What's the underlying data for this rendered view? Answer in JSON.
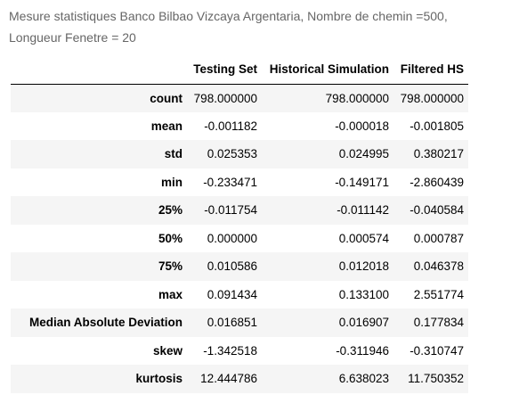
{
  "caption": {
    "line1": "Mesure statistiques Banco Bilbao Vizcaya Argentaria, Nombre de chemin =500,",
    "line2": "Longueur Fenetre = 20"
  },
  "table": {
    "index_header": "",
    "columns": [
      "Testing Set",
      "Historical Simulation",
      "Filtered HS"
    ],
    "rows": [
      {
        "label": "count",
        "values": [
          "798.000000",
          "798.000000",
          "798.000000"
        ]
      },
      {
        "label": "mean",
        "values": [
          "-0.001182",
          "-0.000018",
          "-0.001805"
        ]
      },
      {
        "label": "std",
        "values": [
          "0.025353",
          "0.024995",
          "0.380217"
        ]
      },
      {
        "label": "min",
        "values": [
          "-0.233471",
          "-0.149171",
          "-2.860439"
        ]
      },
      {
        "label": "25%",
        "values": [
          "-0.011754",
          "-0.011142",
          "-0.040584"
        ]
      },
      {
        "label": "50%",
        "values": [
          "0.000000",
          "0.000574",
          "0.000787"
        ]
      },
      {
        "label": "75%",
        "values": [
          "0.010586",
          "0.012018",
          "0.046378"
        ]
      },
      {
        "label": "max",
        "values": [
          "0.091434",
          "0.133100",
          "2.551774"
        ]
      },
      {
        "label": "Median Absolute Deviation",
        "values": [
          "0.016851",
          "0.016907",
          "0.177834"
        ]
      },
      {
        "label": "skew",
        "values": [
          "-1.342518",
          "-0.311946",
          "-0.310747"
        ]
      },
      {
        "label": "kurtosis",
        "values": [
          "12.444786",
          "6.638023",
          "11.750352"
        ]
      }
    ]
  },
  "colors": {
    "caption_text": "#666666",
    "row_stripe": "#f5f5f5",
    "header_rule": "#000000"
  }
}
